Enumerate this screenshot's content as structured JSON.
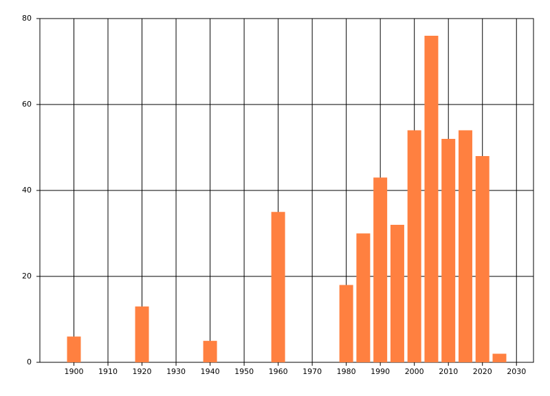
{
  "chart_data": {
    "type": "bar",
    "x": [
      1900,
      1920,
      1940,
      1960,
      1980,
      1985,
      1990,
      1995,
      2000,
      2005,
      2010,
      2015,
      2020,
      2025
    ],
    "values": [
      6,
      13,
      5,
      35,
      18,
      30,
      43,
      32,
      54,
      76,
      52,
      54,
      48,
      2
    ],
    "color": "#ff8040",
    "xlim": [
      1890,
      2035
    ],
    "xticks": [
      1900,
      1910,
      1920,
      1930,
      1940,
      1950,
      1960,
      1970,
      1980,
      1990,
      2000,
      2010,
      2020,
      2030
    ],
    "ylim": [
      0,
      80
    ],
    "yticks": [
      0,
      20,
      40,
      60,
      80
    ],
    "grid": true
  }
}
